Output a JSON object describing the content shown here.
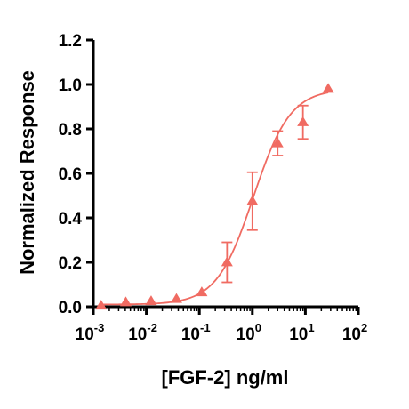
{
  "chart_data": {
    "type": "scatter",
    "xlabel": "[FGF-2] ng/ml",
    "ylabel": "Normalized Response",
    "xscale": "log10",
    "xlim": [
      0.001,
      100
    ],
    "ylim": [
      0,
      1.2
    ],
    "x_ticks": [
      {
        "value": 0.001,
        "base": "10",
        "exp": "-3"
      },
      {
        "value": 0.01,
        "base": "10",
        "exp": "-2"
      },
      {
        "value": 0.1,
        "base": "10",
        "exp": "-1"
      },
      {
        "value": 1,
        "base": "10",
        "exp": "0"
      },
      {
        "value": 10,
        "base": "10",
        "exp": "1"
      },
      {
        "value": 100,
        "base": "10",
        "exp": "2"
      }
    ],
    "y_ticks": [
      {
        "value": 0.0,
        "label": "0.0"
      },
      {
        "value": 0.2,
        "label": "0.2"
      },
      {
        "value": 0.4,
        "label": "0.4"
      },
      {
        "value": 0.6,
        "label": "0.6"
      },
      {
        "value": 0.8,
        "label": "0.8"
      },
      {
        "value": 1.0,
        "label": "1.0"
      },
      {
        "value": 1.2,
        "label": "1.2"
      }
    ],
    "series": [
      {
        "marker": "triangle",
        "color": "#f06b62",
        "points": [
          {
            "x": 0.0014,
            "y": 0.005,
            "err": 0
          },
          {
            "x": 0.0041,
            "y": 0.02,
            "err": 0
          },
          {
            "x": 0.0123,
            "y": 0.025,
            "err": 0
          },
          {
            "x": 0.037,
            "y": 0.035,
            "err": 0
          },
          {
            "x": 0.111,
            "y": 0.065,
            "err": 0
          },
          {
            "x": 0.333,
            "y": 0.2,
            "err": 0.09
          },
          {
            "x": 1.0,
            "y": 0.475,
            "err": 0.13
          },
          {
            "x": 3.0,
            "y": 0.735,
            "err": 0.055
          },
          {
            "x": 9.0,
            "y": 0.83,
            "err": 0.075
          },
          {
            "x": 27.0,
            "y": 0.98,
            "err": 0
          }
        ],
        "fit": {
          "bottom": 0.01,
          "top": 0.98,
          "ec50": 1.05,
          "hill": 1.25
        }
      }
    ]
  }
}
